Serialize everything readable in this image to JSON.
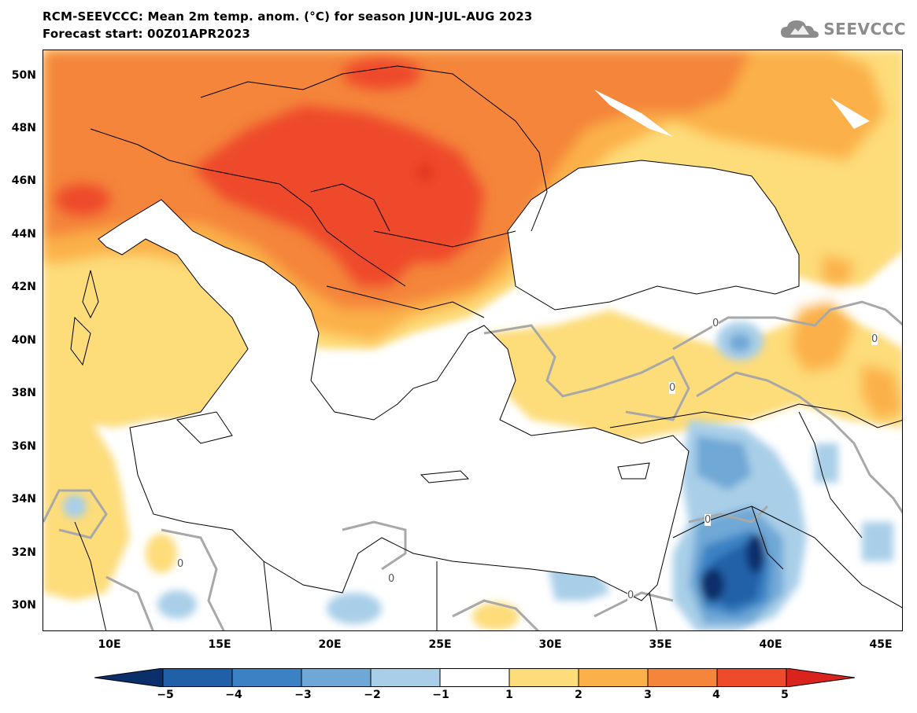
{
  "header": {
    "title_line1": "RCM-SEEVCCC: Mean 2m temp. anom. (°C) for season JUN-JUL-AUG 2023",
    "title_line2": "Forecast start: 00Z01APR2023",
    "logo_text": "SEEVCCC",
    "logo_icon": "cloud-icon"
  },
  "map": {
    "lat_labels": [
      "50N",
      "48N",
      "46N",
      "44N",
      "42N",
      "40N",
      "38N",
      "36N",
      "34N",
      "32N",
      "30N"
    ],
    "lon_labels": [
      "10E",
      "15E",
      "20E",
      "25E",
      "30E",
      "35E",
      "40E",
      "45E"
    ],
    "contour_labels": [
      "0",
      "0",
      "0",
      "0",
      "0",
      "0",
      "0"
    ]
  },
  "colorbar": {
    "labels": [
      "−5",
      "−4",
      "−3",
      "−2",
      "−1",
      "1",
      "2",
      "3",
      "4",
      "5"
    ],
    "colors": [
      "#0a2f6b",
      "#2160a8",
      "#3b82c4",
      "#6fa8d6",
      "#a9cfe8",
      "#ffffff",
      "#fddc7a",
      "#fbb04a",
      "#f4853a",
      "#ee4a2c",
      "#d9241e"
    ]
  }
}
